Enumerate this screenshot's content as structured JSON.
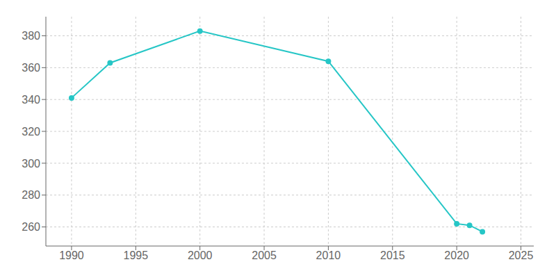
{
  "chart_data": {
    "type": "line",
    "x": [
      1990,
      1993,
      2000,
      2010,
      2020,
      2021,
      2022
    ],
    "values": [
      341,
      363,
      383,
      364,
      262,
      261,
      257
    ],
    "color": "#26C6C6",
    "marker": "circle",
    "xlim": [
      1988,
      2026
    ],
    "xticks": [
      1990,
      1995,
      2000,
      2005,
      2010,
      2015,
      2020,
      2025
    ],
    "ylim": [
      248,
      392
    ],
    "yticks": [
      260,
      280,
      300,
      320,
      340,
      360,
      380
    ],
    "grid": true
  }
}
